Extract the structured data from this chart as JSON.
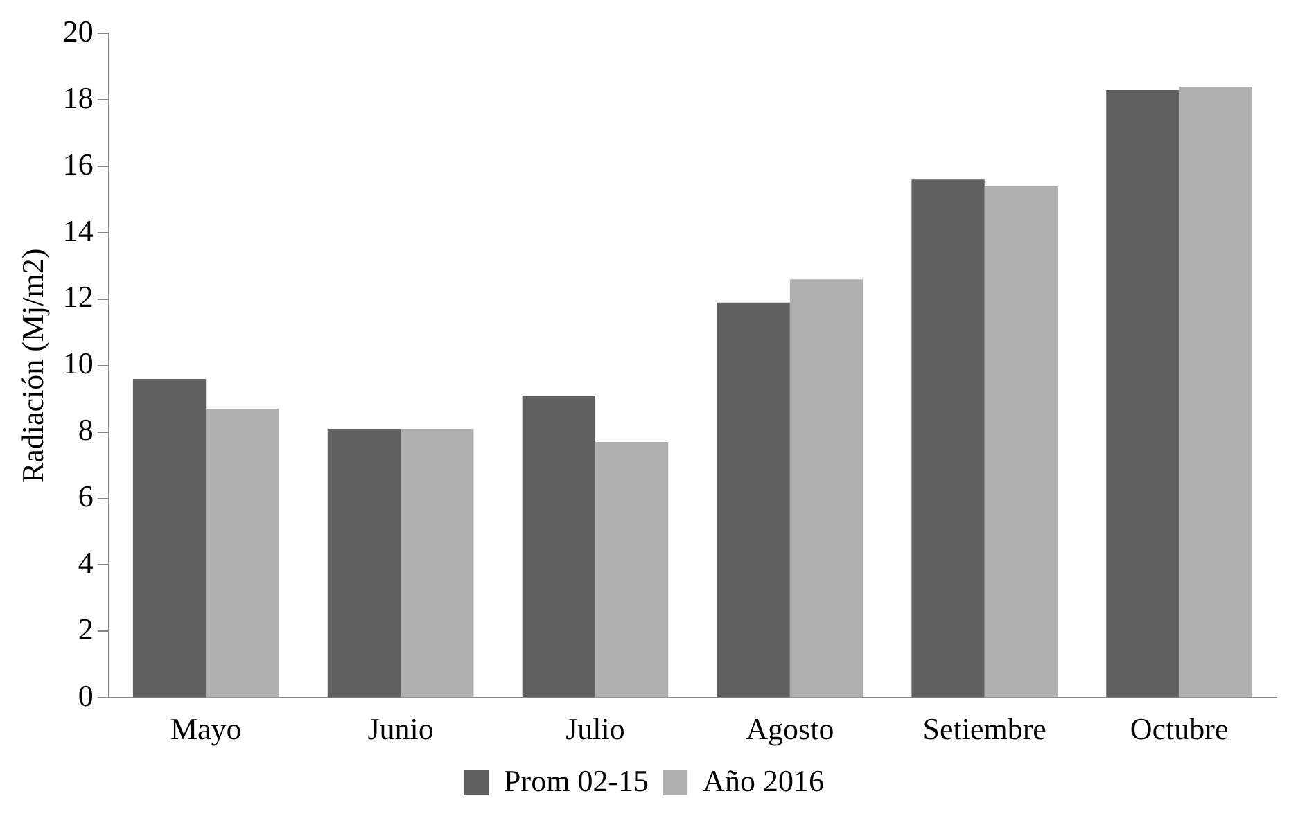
{
  "chart_data": {
    "type": "bar",
    "ylabel": "Radiación (Mj/m2)",
    "categories": [
      "Mayo",
      "Junio",
      "Julio",
      "Agosto",
      "Setiembre",
      "Octubre"
    ],
    "series": [
      {
        "name": "Prom 02-15",
        "color": "#606060",
        "values": [
          9.6,
          8.1,
          9.1,
          11.9,
          15.6,
          18.3
        ]
      },
      {
        "name": "Año 2016",
        "color": "#b0b0b0",
        "values": [
          8.7,
          8.1,
          7.7,
          12.6,
          15.4,
          18.4
        ]
      }
    ],
    "ylim": [
      0,
      20
    ],
    "yticks": [
      0,
      2,
      4,
      6,
      8,
      10,
      12,
      14,
      16,
      18,
      20
    ],
    "grid": false,
    "legend": "bottom"
  }
}
